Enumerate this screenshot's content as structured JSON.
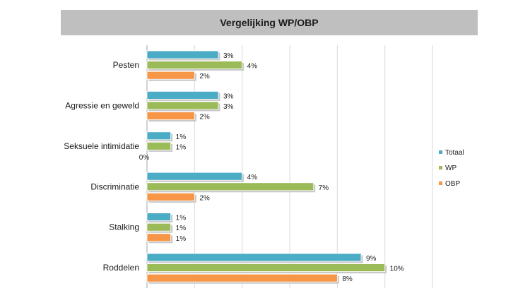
{
  "chart_data": {
    "type": "bar",
    "orientation": "horizontal",
    "title": "Vergelijking WP/OBP",
    "categories": [
      "Pesten",
      "Agressie en geweld",
      "Seksuele intimidatie",
      "Discriminatie",
      "Stalking",
      "Roddelen"
    ],
    "series": [
      {
        "name": "Totaal",
        "color": "#4bacc6",
        "values": [
          3,
          3,
          1,
          4,
          1,
          9
        ],
        "labels": [
          "3%",
          "3%",
          "1%",
          "4%",
          "1%",
          "9%"
        ]
      },
      {
        "name": "WP",
        "color": "#9bbb59",
        "values": [
          4,
          3,
          1,
          7,
          1,
          10
        ],
        "labels": [
          "4%",
          "3%",
          "1%",
          "7%",
          "1%",
          "10%"
        ]
      },
      {
        "name": "OBP",
        "color": "#f79646",
        "values": [
          2,
          2,
          0,
          2,
          1,
          8
        ],
        "labels": [
          "2%",
          "2%",
          "0%",
          "2%",
          "1%",
          "8%"
        ]
      }
    ],
    "xlim": [
      0,
      12
    ],
    "x_unit": "%",
    "grid": true,
    "legend_position": "right"
  }
}
